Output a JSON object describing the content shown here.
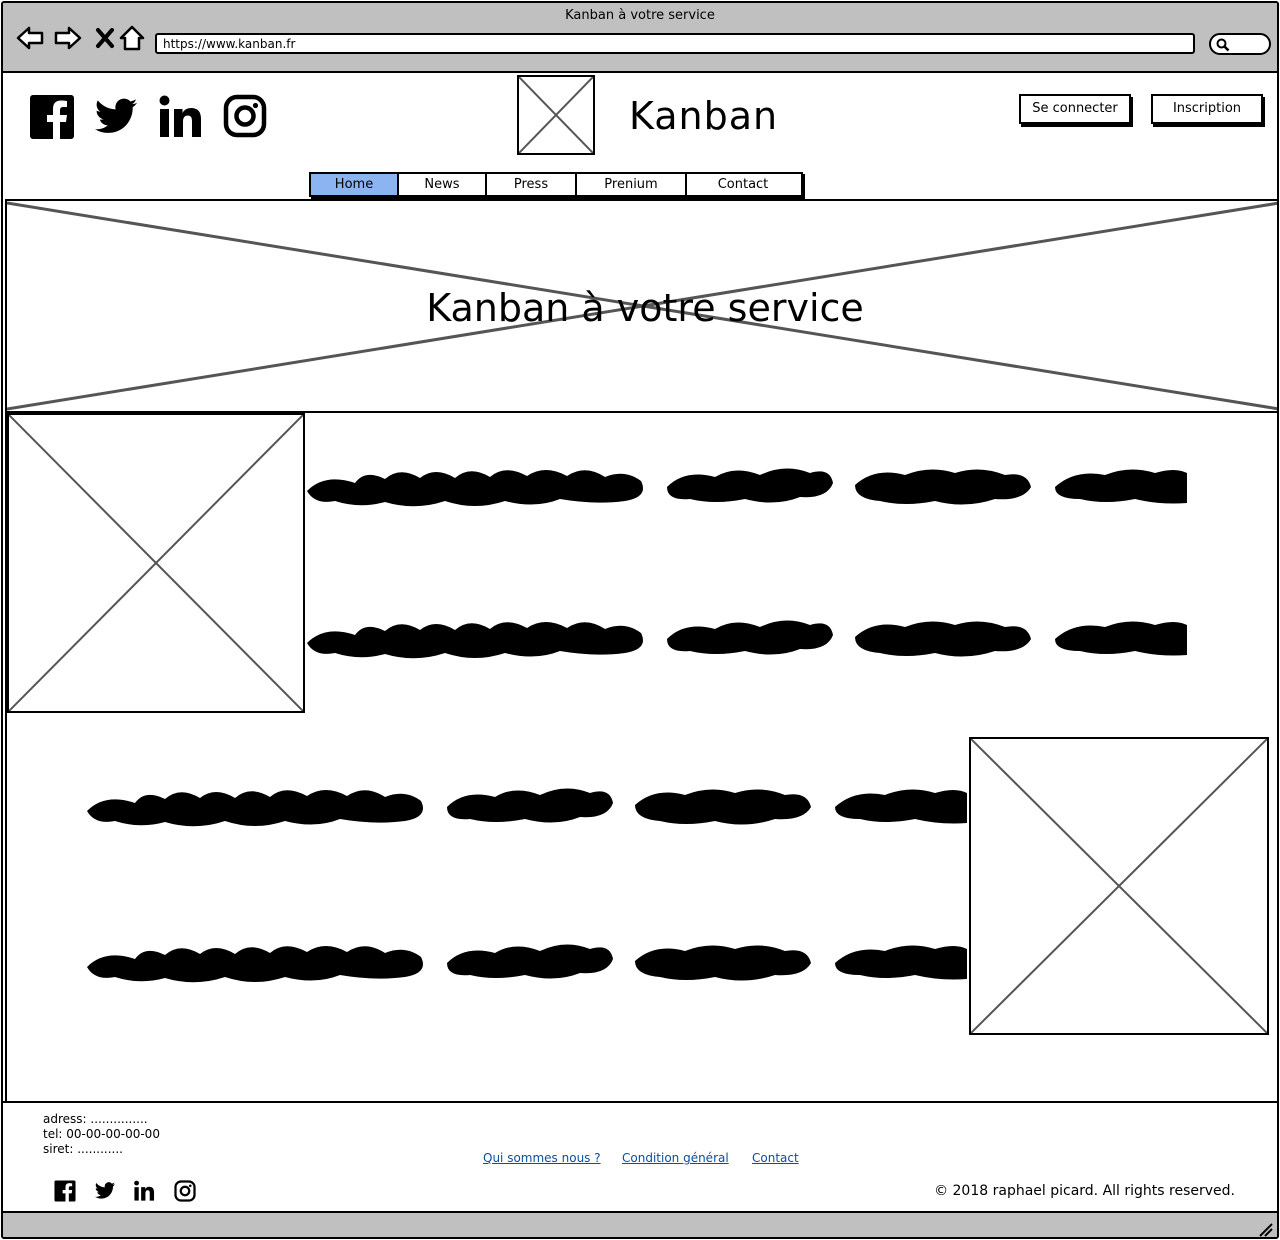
{
  "browser": {
    "window_title": "Kanban à votre service",
    "url": "https://www.kanban.fr"
  },
  "header": {
    "site_name": "Kanban",
    "login_label": "Se connecter",
    "signup_label": "Inscription",
    "social_icons": [
      "facebook-icon",
      "twitter-icon",
      "linkedin-icon",
      "instagram-icon"
    ]
  },
  "nav": {
    "tabs": [
      {
        "label": "Home",
        "active": true
      },
      {
        "label": "News"
      },
      {
        "label": "Press"
      },
      {
        "label": "Prenium"
      },
      {
        "label": "Contact"
      }
    ],
    "active_color": "#8cb4f0"
  },
  "hero": {
    "title": "Kanban à votre service"
  },
  "footer": {
    "address": "adress: ...............",
    "tel": "tel: 00-00-00-00-00",
    "siret": "siret: ............",
    "links": [
      "Qui sommes nous ?",
      "Condition général",
      "Contact"
    ],
    "copyright": "© 2018 raphael picard. All rights reserved.",
    "link_color": "#0a4fa0"
  }
}
